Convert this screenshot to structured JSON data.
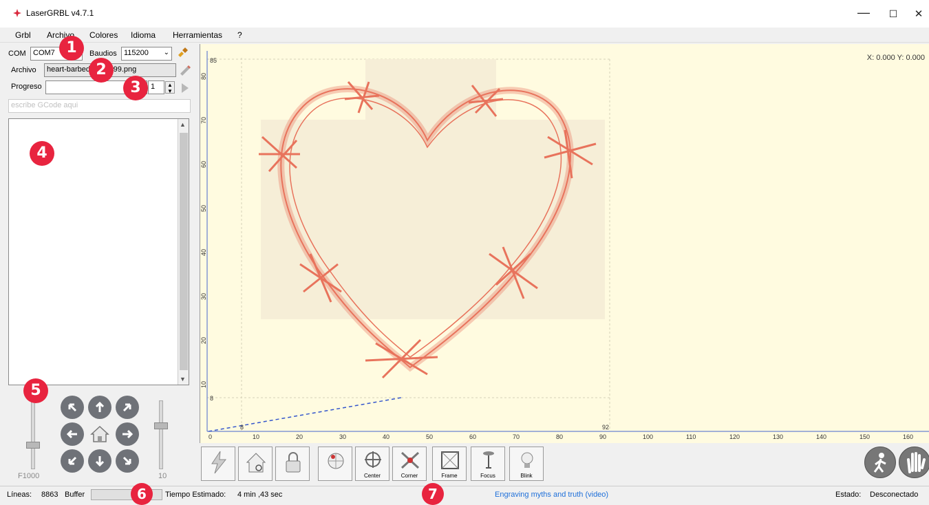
{
  "window": {
    "title": "LaserGRBL v4.7.1",
    "minimize": "—",
    "maximize": "☐",
    "close": "✕"
  },
  "menu": [
    "Grbl",
    "Archivo",
    "Colores",
    "Idioma",
    "Herramientas",
    "?"
  ],
  "connection": {
    "com_label": "COM",
    "com_value": "COM7",
    "baud_label": "Baudios",
    "baud_value": "115200"
  },
  "file": {
    "label": "Archivo",
    "value": "heart-barbed-wire-199.png"
  },
  "progress": {
    "label": "Progreso",
    "value": 0.0,
    "counter": "1"
  },
  "gcode_input": {
    "placeholder": "escribe GCode aqui"
  },
  "jog": {
    "speed_label": "F1000",
    "step_label": "10"
  },
  "badges": [
    "1",
    "2",
    "3",
    "4",
    "5",
    "6",
    "7"
  ],
  "canvas": {
    "coords": "X: 0.000 Y: 0.000",
    "x_ticks": [
      "0",
      "10",
      "20",
      "30",
      "40",
      "50",
      "60",
      "70",
      "80",
      "90",
      "100",
      "110",
      "120",
      "130",
      "140",
      "150",
      "160"
    ],
    "y_ticks": [
      "0",
      "10",
      "20",
      "30",
      "40",
      "50",
      "60",
      "70",
      "80"
    ],
    "x_extent_label": "92",
    "y_extent_label": "85",
    "origin_x_label": "8",
    "origin_y_label": "8",
    "background": "#fffbe0",
    "engraving_color": "#e8735c"
  },
  "toolbar": {
    "buttons": [
      "",
      "",
      "",
      "",
      "Center",
      "Corner",
      "Frame",
      "Focus",
      "Blink"
    ]
  },
  "status": {
    "lines_label": "Líneas:",
    "lines_value": "8863",
    "buffer_label": "Buffer",
    "time_label": "Tiempo Estimado:",
    "time_value": "4 min ,43 sec",
    "link": "Engraving myths and truth (video)",
    "state_label": "Estado:",
    "state_value": "Desconectado",
    "link_color": "#1e6fd9"
  }
}
